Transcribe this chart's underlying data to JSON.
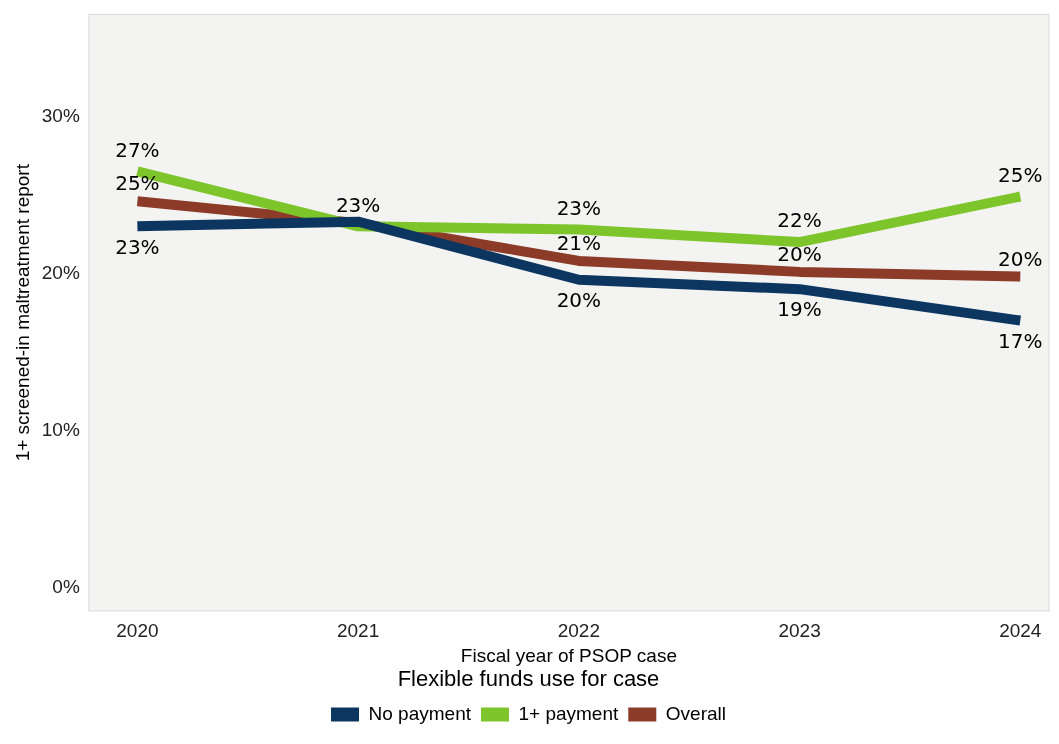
{
  "chart_data": {
    "type": "line",
    "xlabel": "Fiscal year of PSOP case",
    "ylabel": "1+ screened-in maltreatment report",
    "legend_title": "Flexible funds use for case",
    "x": [
      2020,
      2021,
      2022,
      2023,
      2024
    ],
    "xlim": [
      2019.78,
      2024.13
    ],
    "xticks": [
      2020,
      2021,
      2022,
      2023,
      2024
    ],
    "ylim": [
      -1.5,
      36.5
    ],
    "yticks": [
      {
        "value": 0,
        "label": "0%"
      },
      {
        "value": 10,
        "label": "10%"
      },
      {
        "value": 20,
        "label": "20%"
      },
      {
        "value": 30,
        "label": "30%"
      }
    ],
    "series": [
      {
        "name": "No payment",
        "color": "#0c3660",
        "values": [
          23,
          23.3,
          19.6,
          19,
          17
        ],
        "value_labels": [
          "23%",
          null,
          "20%",
          "19%",
          "17%"
        ]
      },
      {
        "name": "1+ payment",
        "color": "#7ec42b",
        "values": [
          26.5,
          23,
          22.8,
          22,
          24.9
        ],
        "value_labels": [
          "27%",
          null,
          "23%",
          "22%",
          "25%"
        ]
      },
      {
        "name": "Overall",
        "color": "#8c3b28",
        "values": [
          24.6,
          23.2,
          20.8,
          20.1,
          19.8
        ],
        "value_labels": [
          "25%",
          "23%",
          "21%",
          "20%",
          "20%"
        ]
      }
    ],
    "grid": false,
    "legend": "bottom",
    "marker": "none",
    "line_style": "solid"
  }
}
